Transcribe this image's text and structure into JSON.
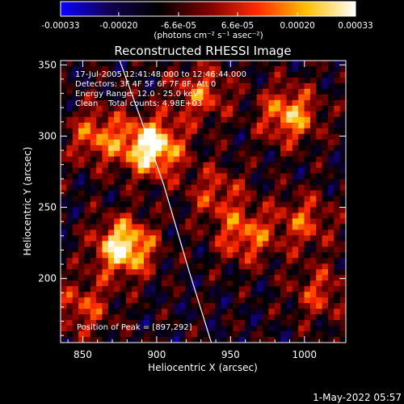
{
  "colorbar": {
    "tick_labels": [
      "-0.00033",
      "-0.00020",
      "-6.6e-05",
      "6.6e-05",
      "0.00020",
      "0.00033"
    ],
    "tick_values": [
      -0.00033,
      -0.0002,
      -6.6e-05,
      6.6e-05,
      0.0002,
      0.00033
    ],
    "range": [
      -0.00033,
      0.00033
    ],
    "units_label": "(photons cm⁻² s⁻¹ asec⁻²)",
    "gradient_stops": [
      "#0a00ff",
      "#120050",
      "#000000",
      "#7a0000",
      "#ff2a00",
      "#ffc000",
      "#ffffff"
    ]
  },
  "title": "Reconstructed RHESSI Image",
  "axes": {
    "xlabel": "Heliocentric X (arcsec)",
    "ylabel": "Heliocentric Y (arcsec)",
    "xlim": [
      835,
      1028
    ],
    "ylim": [
      155,
      353
    ],
    "xticks": [
      850,
      900,
      950,
      1000
    ],
    "xtick_labels": [
      "850",
      "900",
      "950",
      "1000"
    ],
    "yticks": [
      200,
      250,
      300,
      350
    ],
    "ytick_labels": [
      "200",
      "250",
      "300",
      "350"
    ]
  },
  "annotations": {
    "time_range": "17-Jul-2005 12:41:48.000 to 12:46:44.000",
    "detectors": "Detectors: 3F 4F 5F 6F 7F 8F, Att 0",
    "energy_range": "Energy Range: 12.0 - 25.0 keV",
    "method": "Clean    Total counts: 4.98E+03",
    "peak_position": "Position of Peak = [897,292]"
  },
  "footer_date": "1-May-2022 05:57",
  "image_data": {
    "grid_size": [
      48,
      50
    ],
    "peak": [
      897,
      292
    ],
    "blobs": [
      {
        "x": 897,
        "y": 292,
        "amp": 1.0
      },
      {
        "x": 878,
        "y": 222,
        "amp": 0.95
      },
      {
        "x": 990,
        "y": 315,
        "amp": 0.7
      },
      {
        "x": 860,
        "y": 300,
        "amp": 0.55
      },
      {
        "x": 930,
        "y": 330,
        "amp": 0.5
      },
      {
        "x": 960,
        "y": 230,
        "amp": 0.55
      },
      {
        "x": 1000,
        "y": 240,
        "amp": 0.45
      },
      {
        "x": 940,
        "y": 260,
        "amp": 0.4
      },
      {
        "x": 1010,
        "y": 190,
        "amp": 0.4
      },
      {
        "x": 850,
        "y": 180,
        "amp": 0.45
      }
    ],
    "limb_curve": [
      [
        937,
        155
      ],
      [
        922,
        205
      ],
      [
        905,
        265
      ],
      [
        890,
        310
      ],
      [
        875,
        353
      ]
    ]
  }
}
